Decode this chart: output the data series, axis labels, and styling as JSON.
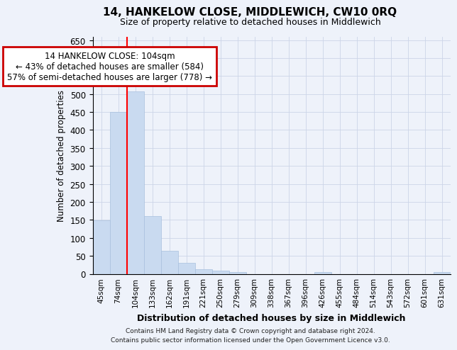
{
  "title": "14, HANKELOW CLOSE, MIDDLEWICH, CW10 0RQ",
  "subtitle": "Size of property relative to detached houses in Middlewich",
  "xlabel": "Distribution of detached houses by size in Middlewich",
  "ylabel": "Number of detached properties",
  "categories": [
    "45sqm",
    "74sqm",
    "104sqm",
    "133sqm",
    "162sqm",
    "191sqm",
    "221sqm",
    "250sqm",
    "279sqm",
    "309sqm",
    "338sqm",
    "367sqm",
    "396sqm",
    "426sqm",
    "455sqm",
    "484sqm",
    "514sqm",
    "543sqm",
    "572sqm",
    "601sqm",
    "631sqm"
  ],
  "values": [
    148,
    450,
    508,
    160,
    65,
    30,
    13,
    8,
    5,
    0,
    0,
    0,
    0,
    5,
    0,
    0,
    0,
    0,
    0,
    0,
    5
  ],
  "bar_color": "#c9daf0",
  "bar_edge_color": "#a8c0de",
  "red_line_x": 1.5,
  "ylim": [
    0,
    660
  ],
  "yticks": [
    0,
    50,
    100,
    150,
    200,
    250,
    300,
    350,
    400,
    450,
    500,
    550,
    600,
    650
  ],
  "grid_color": "#ccd5e8",
  "annotation_text_line1": "14 HANKELOW CLOSE: 104sqm",
  "annotation_text_line2": "← 43% of detached houses are smaller (584)",
  "annotation_text_line3": "57% of semi-detached houses are larger (778) →",
  "annotation_box_color": "#ffffff",
  "annotation_box_edge": "#cc0000",
  "footer_line1": "Contains HM Land Registry data © Crown copyright and database right 2024.",
  "footer_line2": "Contains public sector information licensed under the Open Government Licence v3.0.",
  "background_color": "#eef2fa"
}
